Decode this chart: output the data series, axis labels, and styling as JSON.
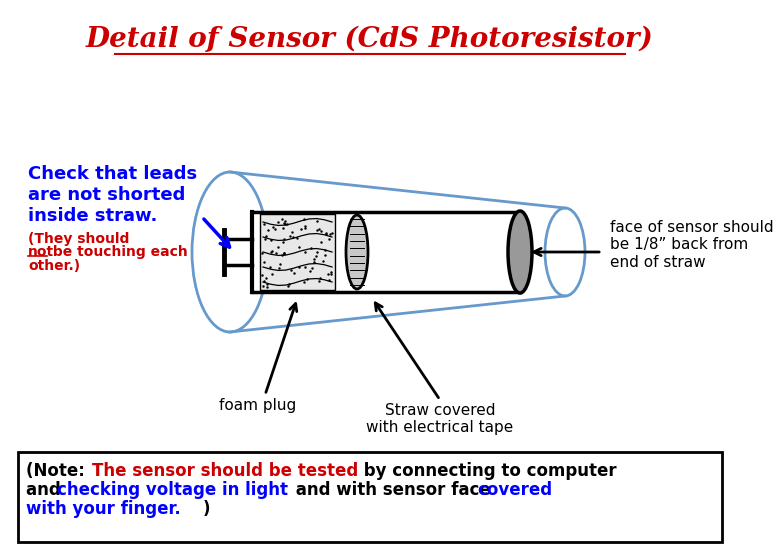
{
  "title": "Detail of Sensor (CdS Photoresistor)",
  "title_color": "#cc0000",
  "title_fontsize": 20,
  "bg_color": "#ffffff",
  "check_text_blue": "Check that leads\nare not shorted\ninside straw.",
  "check_text_red": "(They should not\nbe touching each\nother.)",
  "face_text": "face of sensor should\nbe 1/8” back from\nend of straw",
  "foam_text": "foam plug",
  "straw_text": "Straw covered\nwith electrical tape",
  "straw_color": "#6699cc",
  "body_color": "#000000",
  "foam_fill": "#e8e8e8",
  "sensor_fill": "#aaaaaa",
  "lead_color": "#000000",
  "note_box_color": "#000000"
}
